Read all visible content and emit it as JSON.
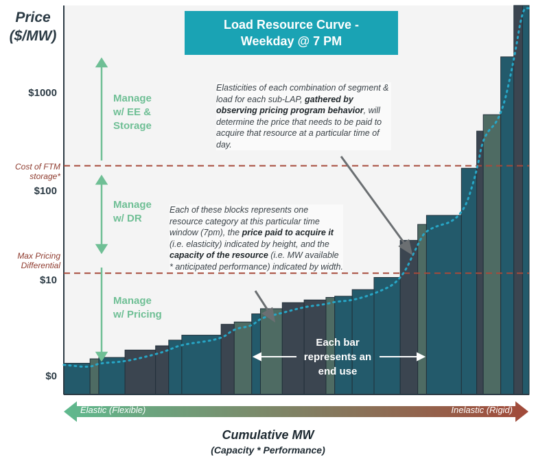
{
  "title": "Load Resource Curve -\nWeekday @ 7 PM",
  "y_axis": {
    "title_line1": "Price",
    "title_line2": "($/MW)",
    "ticks": [
      "$1000",
      "$100",
      "$10",
      "$0"
    ]
  },
  "reference_lines": [
    {
      "label": "Cost of FTM\nstorage*",
      "color": "#a64a3b"
    },
    {
      "label": "Max Pricing\nDifferential",
      "color": "#a64a3b"
    }
  ],
  "zones": [
    {
      "label": "Manage\nw/ EE &\nStorage"
    },
    {
      "label": "Manage\nw/ DR"
    },
    {
      "label": "Manage\nw/ Pricing"
    }
  ],
  "annotations": {
    "elasticities_html": "Elasticities of each combination of segment & load for each sub-LAP, <b>gathered by observing pricing program behavior</b>, will determine the price that needs to be paid to acquire that resource at a particular time of day.",
    "blocks_html": "Each of these blocks represents one resource category at this particular time window (7pm), the <b>price paid to acquire it</b> (i.e. elasticity) indicated by height, and the <b>capacity of the resource</b> (i.e. MW available * anticipated performance) indicated by width.",
    "each_bar": "Each bar\nrepresents an\nend use"
  },
  "x_axis": {
    "elastic": "Elastic (Flexible)",
    "inelastic": "Inelastic (Rigid)",
    "title": "Cumulative MW",
    "subtitle": "(Capacity * Performance)"
  },
  "colors": {
    "title_box": "#1aa3b4",
    "zone_green": "#6fbf95",
    "bar_dark_teal": "#235a6b",
    "bar_slate": "#3b4550",
    "bar_green_gray": "#4e6b63",
    "curve": "#27a6c6",
    "ref_line": "#a64a3b",
    "plot_bg": "#f4f4f4",
    "arrow_left": "#5fb98e",
    "arrow_right": "#a24a3a"
  },
  "chart_data": {
    "type": "bar",
    "title": "Load Resource Curve - Weekday @ 7 PM",
    "xlabel": "Cumulative MW (Capacity * Performance)",
    "ylabel": "Price ($/MW)",
    "y_scale": "log",
    "y_ticks": [
      "$0",
      "$10",
      "$100",
      "$1000"
    ],
    "reference_lines": [
      {
        "name": "Cost of FTM storage*",
        "y": 170
      },
      {
        "name": "Max Pricing Differential",
        "y": 12
      }
    ],
    "bars": [
      {
        "x_start": 0,
        "x_end": 6,
        "price": 1.3,
        "style": "teal"
      },
      {
        "x_start": 6,
        "x_end": 8,
        "price": 1.45,
        "style": "green"
      },
      {
        "x_start": 8,
        "x_end": 14,
        "price": 1.5,
        "style": "teal"
      },
      {
        "x_start": 14,
        "x_end": 21,
        "price": 1.8,
        "style": "slate"
      },
      {
        "x_start": 21,
        "x_end": 24,
        "price": 2.0,
        "style": "slate"
      },
      {
        "x_start": 24,
        "x_end": 27,
        "price": 2.3,
        "style": "teal"
      },
      {
        "x_start": 27,
        "x_end": 36,
        "price": 2.6,
        "style": "teal"
      },
      {
        "x_start": 36,
        "x_end": 39,
        "price": 3.4,
        "style": "slate"
      },
      {
        "x_start": 39,
        "x_end": 43,
        "price": 3.6,
        "style": "green"
      },
      {
        "x_start": 43,
        "x_end": 45,
        "price": 4.4,
        "style": "teal"
      },
      {
        "x_start": 45,
        "x_end": 50,
        "price": 5.0,
        "style": "green"
      },
      {
        "x_start": 50,
        "x_end": 55,
        "price": 5.8,
        "style": "slate"
      },
      {
        "x_start": 55,
        "x_end": 60,
        "price": 6.2,
        "style": "slate"
      },
      {
        "x_start": 60,
        "x_end": 62,
        "price": 6.6,
        "style": "green"
      },
      {
        "x_start": 62,
        "x_end": 66,
        "price": 6.8,
        "style": "teal"
      },
      {
        "x_start": 66,
        "x_end": 71,
        "price": 8.0,
        "style": "teal"
      },
      {
        "x_start": 71,
        "x_end": 77,
        "price": 10.8,
        "style": "teal"
      },
      {
        "x_start": 77,
        "x_end": 81,
        "price": 27,
        "style": "slate"
      },
      {
        "x_start": 81,
        "x_end": 83,
        "price": 40,
        "style": "green"
      },
      {
        "x_start": 83,
        "x_end": 91,
        "price": 50,
        "style": "teal"
      },
      {
        "x_start": 91,
        "x_end": 94.5,
        "price": 160,
        "style": "teal"
      },
      {
        "x_start": 94.5,
        "x_end": 96,
        "price": 400,
        "style": "slate"
      },
      {
        "x_start": 96,
        "x_end": 100,
        "price": 600,
        "style": "green"
      },
      {
        "x_start": 100,
        "x_end": 103,
        "price": 2500,
        "style": "teal"
      },
      {
        "x_start": 103,
        "x_end": 105,
        "price": 12000,
        "style": "slate"
      },
      {
        "x_start": 105,
        "x_end": 106.5,
        "price": 30000,
        "style": "teal"
      }
    ],
    "x_range": [
      0,
      106.5
    ],
    "grid": false,
    "legend": "none"
  }
}
